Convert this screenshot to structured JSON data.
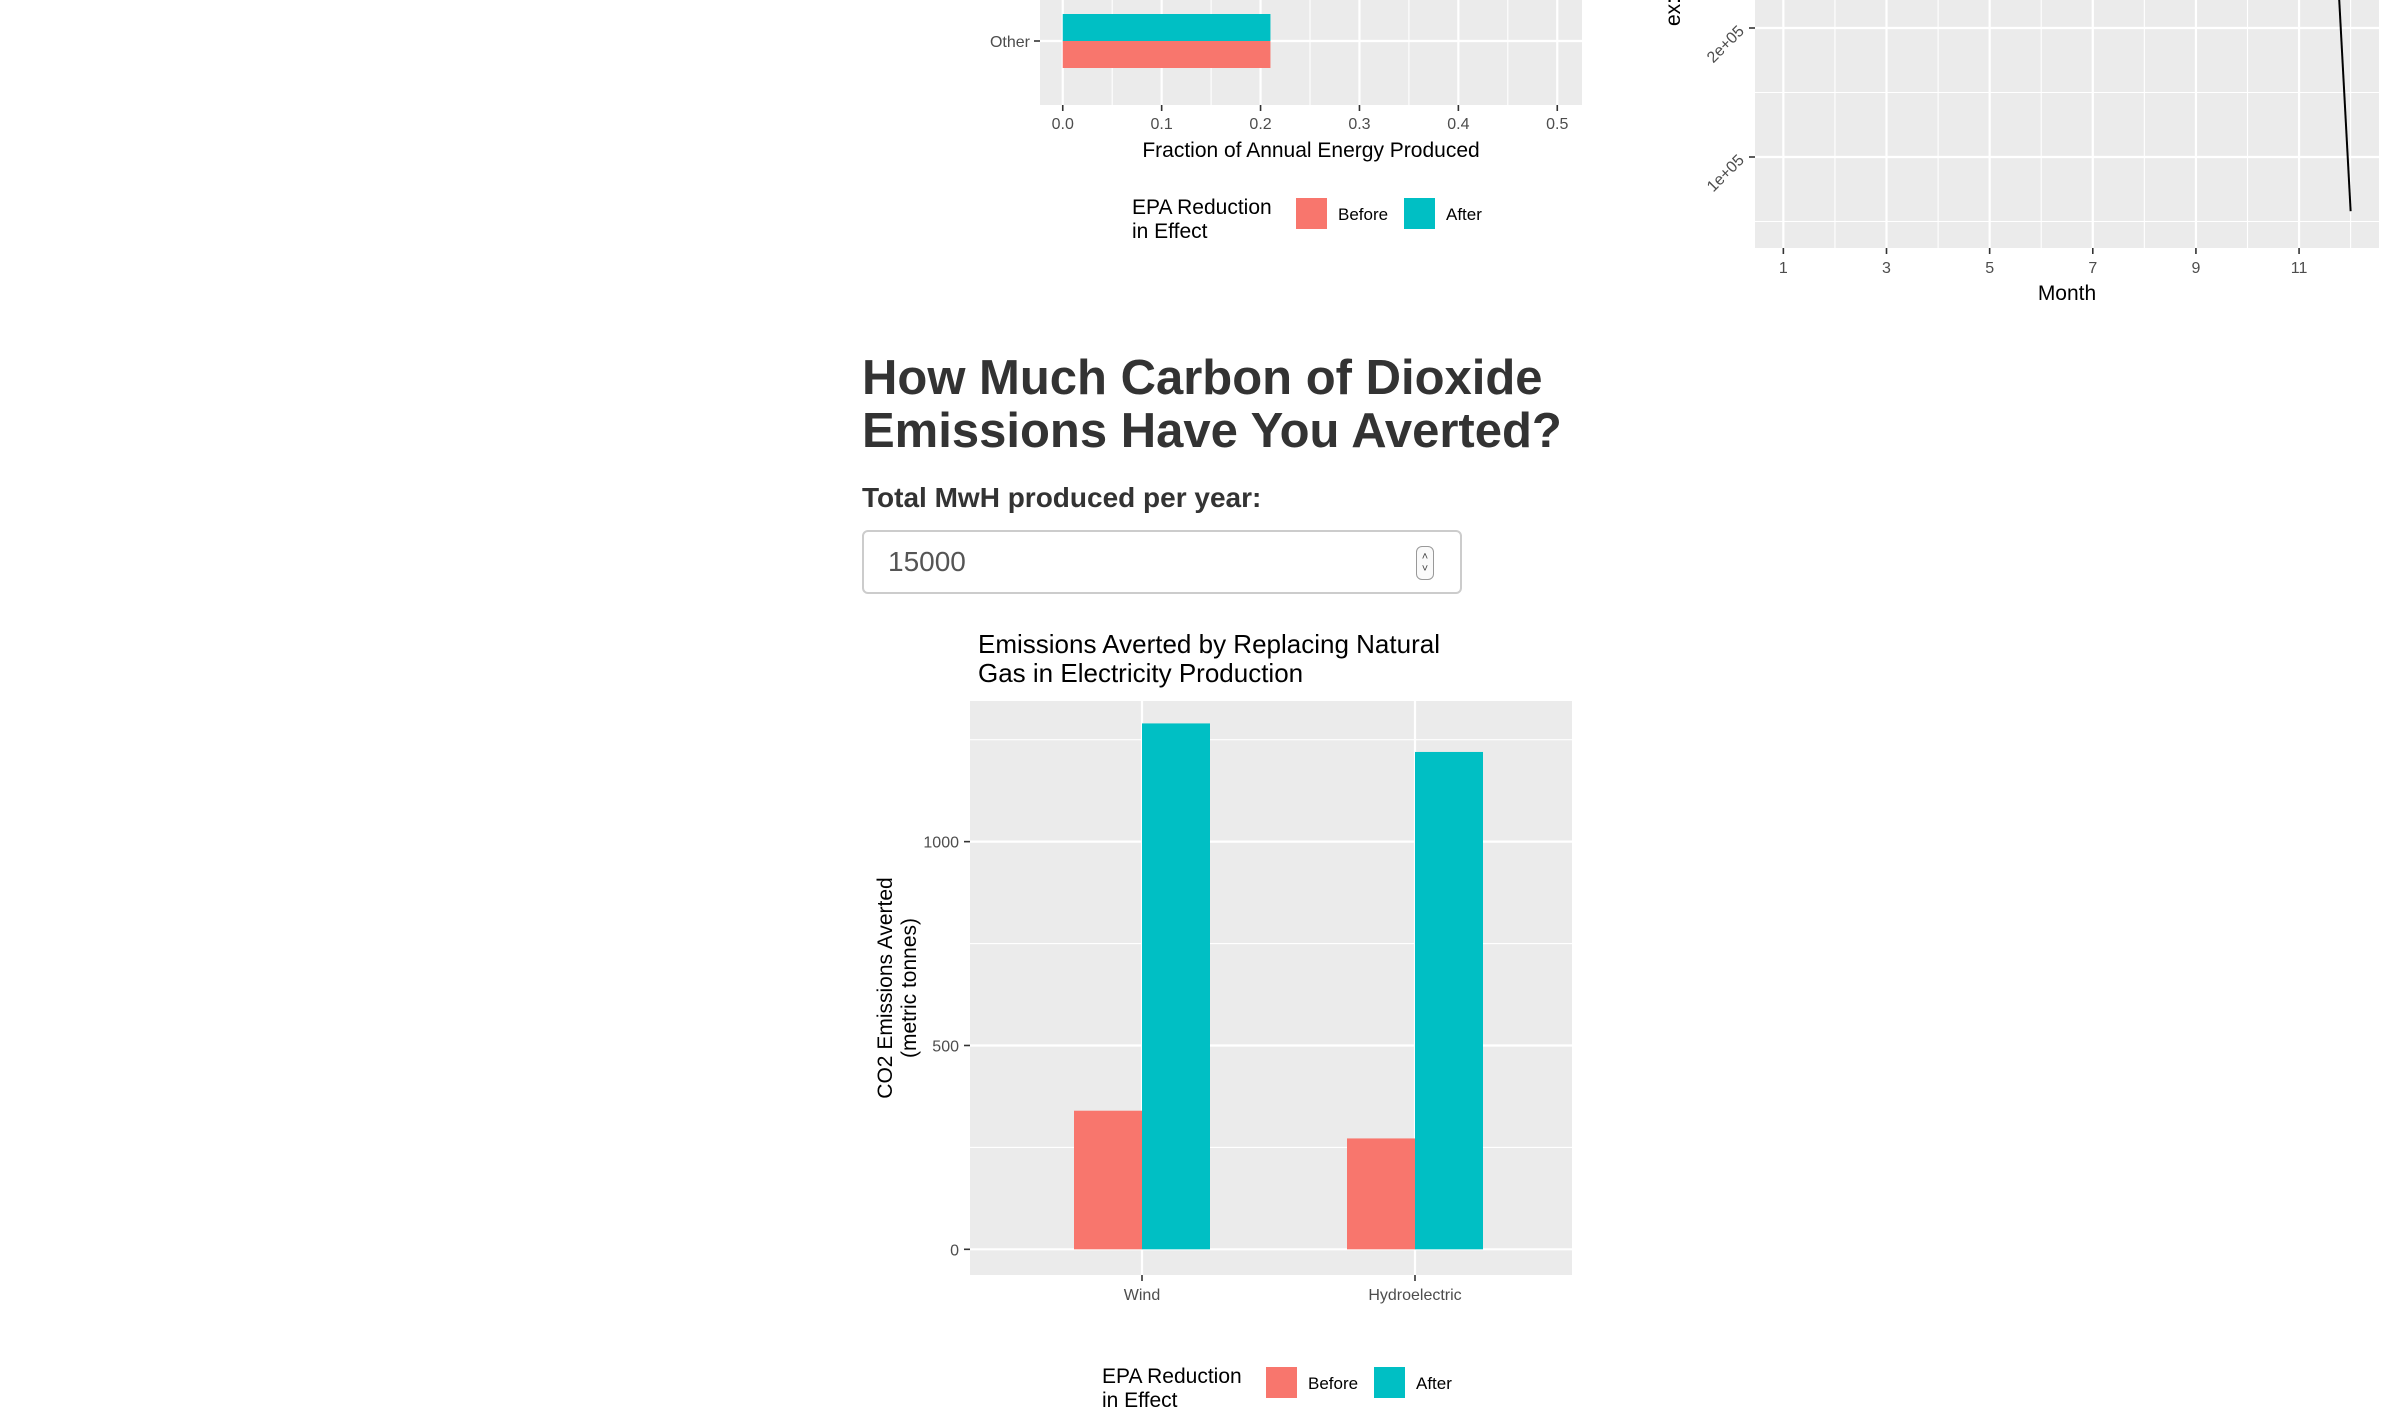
{
  "section": {
    "heading": "How Much Carbon of Dioxide Emissions Have You Averted?",
    "mwh_label": "Total MwH produced per year:",
    "mwh_value": "15000"
  },
  "colors": {
    "before": "#F8766D",
    "after": "#00BFC4",
    "line": "#000000"
  },
  "chart_data": [
    {
      "id": "fraction",
      "type": "bar",
      "orientation": "horizontal",
      "categories": [
        "Other"
      ],
      "series": [
        {
          "name": "Before",
          "values": [
            0.21
          ]
        },
        {
          "name": "After",
          "values": [
            0.21
          ]
        }
      ],
      "xlabel": "Fraction of Annual Energy Produced",
      "xticks": [
        "0.0",
        "0.1",
        "0.2",
        "0.3",
        "0.4",
        "0.5"
      ],
      "xlim": [
        -0.023,
        0.525
      ],
      "legend_title": "EPA Reduction\nin Effect",
      "legend_labels": [
        "Before",
        "After"
      ],
      "legend_position": "bottom"
    },
    {
      "id": "monthly",
      "type": "line",
      "x": [
        11.7,
        12
      ],
      "y": [
        280000,
        58000
      ],
      "xlabel": "Month",
      "ylabel": "ex:",
      "xticks": [
        "1",
        "3",
        "5",
        "7",
        "9",
        "11"
      ],
      "yticks": [
        "1e+05",
        "2e+05"
      ],
      "xlim": [
        0.45,
        12.55
      ]
    },
    {
      "id": "averted",
      "type": "bar",
      "title": "Emissions Averted by Replacing Natural\nGas in Electricity Production",
      "categories": [
        "Wind",
        "Hydroelectric"
      ],
      "series": [
        {
          "name": "Before",
          "values": [
            340,
            272
          ]
        },
        {
          "name": "After",
          "values": [
            1290,
            1220
          ]
        }
      ],
      "ylabel": "CO2 Emissions Averted\n(metric tonnes)",
      "yticks": [
        "0",
        "500",
        "1000"
      ],
      "ylim": [
        -63,
        1345
      ],
      "legend_title": "EPA Reduction\nin Effect",
      "legend_labels": [
        "Before",
        "After"
      ],
      "legend_position": "bottom"
    }
  ]
}
